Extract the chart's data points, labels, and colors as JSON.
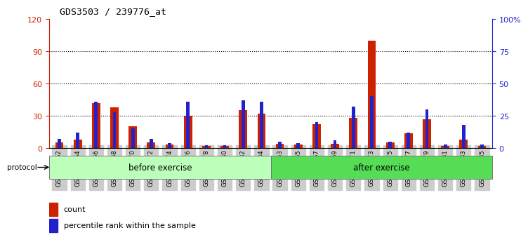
{
  "title": "GDS3503 / 239776_at",
  "samples": [
    "GSM306062",
    "GSM306064",
    "GSM306066",
    "GSM306068",
    "GSM306070",
    "GSM306072",
    "GSM306074",
    "GSM306076",
    "GSM306078",
    "GSM306080",
    "GSM306082",
    "GSM306084",
    "GSM306063",
    "GSM306065",
    "GSM306067",
    "GSM306069",
    "GSM306071",
    "GSM306073",
    "GSM306075",
    "GSM306077",
    "GSM306079",
    "GSM306081",
    "GSM306083",
    "GSM306085"
  ],
  "count": [
    5,
    8,
    42,
    38,
    20,
    5,
    3,
    30,
    2,
    2,
    35,
    32,
    4,
    3,
    22,
    4,
    28,
    100,
    5,
    14,
    27,
    2,
    8,
    2
  ],
  "percentile": [
    7,
    12,
    36,
    28,
    15,
    7,
    4,
    36,
    2,
    2,
    37,
    36,
    5,
    4,
    20,
    6,
    32,
    40,
    5,
    12,
    30,
    3,
    18,
    3
  ],
  "before_exercise_count": 12,
  "after_exercise_count": 12,
  "ylim_left": [
    0,
    120
  ],
  "yticks_left": [
    0,
    30,
    60,
    90,
    120
  ],
  "ylim_right": [
    0,
    100
  ],
  "yticks_right": [
    0,
    25,
    50,
    75,
    100
  ],
  "bar_color_red": "#cc2200",
  "bar_color_blue": "#2222cc",
  "before_color": "#bbffbb",
  "after_color": "#55dd55",
  "protocol_label": "protocol",
  "before_label": "before exercise",
  "after_label": "after exercise",
  "legend_count": "count",
  "legend_percentile": "percentile rank within the sample",
  "left_axis_color": "#cc2200",
  "right_axis_color": "#2222cc",
  "grid_lines": [
    30,
    60,
    90
  ],
  "xtick_bg": "#cccccc"
}
